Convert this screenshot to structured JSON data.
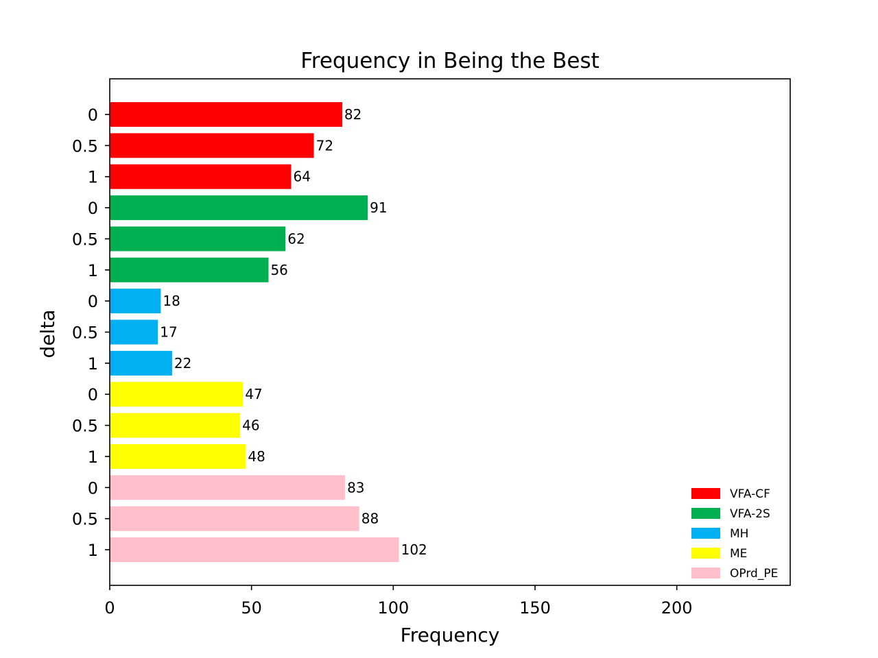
{
  "chart_data": {
    "type": "bar",
    "orientation": "horizontal",
    "title": "Frequency in Being the Best",
    "xlabel": "Frequency",
    "ylabel": "delta",
    "xlim": [
      0,
      240
    ],
    "xticks": [
      "0",
      "50",
      "100",
      "150",
      "200"
    ],
    "grid": false,
    "legend_position": "bottom-right",
    "series": [
      {
        "name": "VFA-CF",
        "color": "#ff0000",
        "categories": [
          "0",
          "0.5",
          "1"
        ],
        "values": [
          82,
          72,
          64
        ]
      },
      {
        "name": "VFA-2S",
        "color": "#00b050",
        "categories": [
          "0",
          "0.5",
          "1"
        ],
        "values": [
          91,
          62,
          56
        ]
      },
      {
        "name": "MH",
        "color": "#00b0f0",
        "categories": [
          "0",
          "0.5",
          "1"
        ],
        "values": [
          18,
          17,
          22
        ]
      },
      {
        "name": "ME",
        "color": "#ffff00",
        "categories": [
          "0",
          "0.5",
          "1"
        ],
        "values": [
          47,
          46,
          48
        ]
      },
      {
        "name": "OPrd_PE",
        "color": "#ffc0cb",
        "categories": [
          "0",
          "0.5",
          "1"
        ],
        "values": [
          83,
          88,
          102
        ]
      }
    ]
  }
}
